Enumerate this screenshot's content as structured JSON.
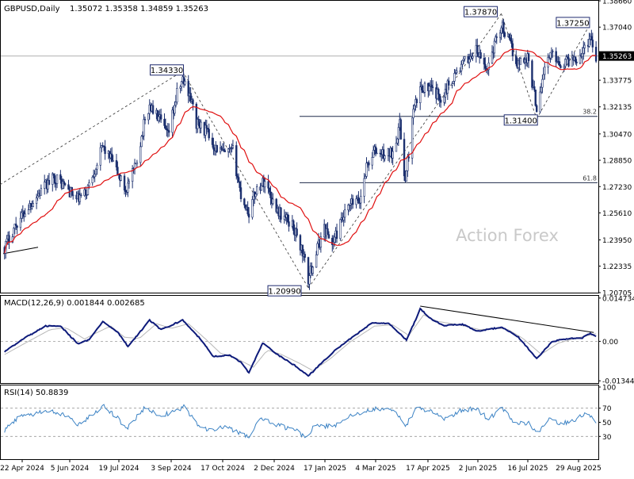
{
  "header": {
    "title": "GBPUSD,Daily",
    "ohlc": "1.35072 1.35358 1.34859 1.35263"
  },
  "watermark": "Action Forex",
  "colors": {
    "candle": "#1b2f6e",
    "ma": "#e01010",
    "macd": "#0d1a7a",
    "signal": "#b8b8b8",
    "rsi": "#3b82c4",
    "grid": "#c8c8c8",
    "trendline": "#000000",
    "watermark": "#c9c9c9"
  },
  "chart_data": [
    {
      "type": "candlestick",
      "title": "GBPUSD,Daily",
      "y_ticks": [
        "1.38660",
        "1.37040",
        "1.35263",
        "1.33775",
        "1.32135",
        "1.30470",
        "1.28850",
        "1.27230",
        "1.25610",
        "1.23950",
        "1.22335",
        "1.20705"
      ],
      "ylim": [
        1.20705,
        1.3866
      ],
      "current_price": "1.35263",
      "x_ticks": [
        "22 Apr 2024",
        "5 Jun 2024",
        "19 Jul 2024",
        "3 Sep 2024",
        "17 Oct 2024",
        "2 Dec 2024",
        "17 Jan 2025",
        "4 Mar 2025",
        "17 Apr 2025",
        "2 Jun 2025",
        "16 Jul 2025",
        "29 Aug 2025"
      ],
      "swing_labels": [
        {
          "label": "1.34330",
          "date": "2024-09-25",
          "value": 1.3433
        },
        {
          "label": "1.20990",
          "date": "2025-01-13",
          "value": 1.2099
        },
        {
          "label": "1.37870",
          "date": "2025-07-01",
          "value": 1.3787
        },
        {
          "label": "1.31400",
          "date": "2025-08-01",
          "value": 1.314
        },
        {
          "label": "1.37250",
          "date": "2025-09-17",
          "value": 1.3725
        }
      ],
      "fibonacci": [
        {
          "label": "38.2",
          "value": 1.3155
        },
        {
          "label": "61.8",
          "value": 1.2747
        }
      ],
      "moving_average": "red",
      "close_path": [
        [
          "2024-04-22",
          1.235
        ],
        [
          "2024-05-01",
          1.248
        ],
        [
          "2024-05-15",
          1.262
        ],
        [
          "2024-05-28",
          1.273
        ],
        [
          "2024-06-05",
          1.278
        ],
        [
          "2024-06-15",
          1.272
        ],
        [
          "2024-06-24",
          1.264
        ],
        [
          "2024-07-02",
          1.268
        ],
        [
          "2024-07-12",
          1.287
        ],
        [
          "2024-07-17",
          1.297
        ],
        [
          "2024-07-25",
          1.288
        ],
        [
          "2024-08-06",
          1.27
        ],
        [
          "2024-08-14",
          1.283
        ],
        [
          "2024-08-22",
          1.31
        ],
        [
          "2024-08-27",
          1.322
        ],
        [
          "2024-09-05",
          1.313
        ],
        [
          "2024-09-12",
          1.303
        ],
        [
          "2024-09-20",
          1.329
        ],
        [
          "2024-09-25",
          1.338
        ],
        [
          "2024-10-01",
          1.33
        ],
        [
          "2024-10-07",
          1.311
        ],
        [
          "2024-10-15",
          1.307
        ],
        [
          "2024-10-23",
          1.297
        ],
        [
          "2024-11-01",
          1.292
        ],
        [
          "2024-11-08",
          1.294
        ],
        [
          "2024-11-15",
          1.267
        ],
        [
          "2024-11-22",
          1.256
        ],
        [
          "2024-11-28",
          1.27
        ],
        [
          "2024-12-06",
          1.276
        ],
        [
          "2024-12-13",
          1.263
        ],
        [
          "2024-12-20",
          1.255
        ],
        [
          "2024-12-30",
          1.249
        ],
        [
          "2025-01-08",
          1.232
        ],
        [
          "2025-01-13",
          1.215
        ],
        [
          "2025-01-20",
          1.232
        ],
        [
          "2025-01-27",
          1.247
        ],
        [
          "2025-02-03",
          1.237
        ],
        [
          "2025-02-12",
          1.252
        ],
        [
          "2025-02-20",
          1.262
        ],
        [
          "2025-02-27",
          1.263
        ],
        [
          "2025-03-05",
          1.285
        ],
        [
          "2025-03-12",
          1.294
        ],
        [
          "2025-03-20",
          1.292
        ],
        [
          "2025-03-27",
          1.293
        ],
        [
          "2025-04-03",
          1.31
        ],
        [
          "2025-04-08",
          1.275
        ],
        [
          "2025-04-15",
          1.318
        ],
        [
          "2025-04-22",
          1.334
        ],
        [
          "2025-04-30",
          1.332
        ],
        [
          "2025-05-09",
          1.327
        ],
        [
          "2025-05-20",
          1.34
        ],
        [
          "2025-05-30",
          1.349
        ],
        [
          "2025-06-09",
          1.356
        ],
        [
          "2025-06-18",
          1.344
        ],
        [
          "2025-06-27",
          1.364
        ],
        [
          "2025-07-01",
          1.372
        ],
        [
          "2025-07-08",
          1.361
        ],
        [
          "2025-07-15",
          1.348
        ],
        [
          "2025-07-24",
          1.352
        ],
        [
          "2025-08-01",
          1.321
        ],
        [
          "2025-08-08",
          1.346
        ],
        [
          "2025-08-15",
          1.355
        ],
        [
          "2025-08-22",
          1.348
        ],
        [
          "2025-08-29",
          1.35
        ],
        [
          "2025-09-05",
          1.352
        ],
        [
          "2025-09-12",
          1.357
        ],
        [
          "2025-09-17",
          1.365
        ],
        [
          "2025-09-22",
          1.3526
        ]
      ]
    },
    {
      "type": "line",
      "title": "MACD(12,26,9) 0.001844 0.002685",
      "y_ticks": [
        "0.014734",
        "0.00",
        "-0.013442"
      ],
      "ylim": [
        -0.0142,
        0.0155
      ],
      "series": [
        {
          "name": "MACD",
          "points": [
            [
              "2024-04-22",
              -0.0035
            ],
            [
              "2024-05-10",
              0.0012
            ],
            [
              "2024-05-28",
              0.0052
            ],
            [
              "2024-06-10",
              0.0052
            ],
            [
              "2024-06-25",
              -0.0008
            ],
            [
              "2024-07-05",
              0.0004
            ],
            [
              "2024-07-17",
              0.0068
            ],
            [
              "2024-07-30",
              0.0032
            ],
            [
              "2024-08-08",
              -0.0018
            ],
            [
              "2024-08-27",
              0.0072
            ],
            [
              "2024-09-06",
              0.004
            ],
            [
              "2024-09-25",
              0.0072
            ],
            [
              "2024-10-10",
              0.001
            ],
            [
              "2024-10-22",
              -0.0052
            ],
            [
              "2024-11-05",
              -0.0046
            ],
            [
              "2024-11-15",
              -0.0072
            ],
            [
              "2024-11-22",
              -0.0108
            ],
            [
              "2024-12-04",
              -0.0006
            ],
            [
              "2024-12-18",
              -0.0048
            ],
            [
              "2025-01-02",
              -0.0084
            ],
            [
              "2025-01-13",
              -0.0118
            ],
            [
              "2025-01-20",
              -0.0092
            ],
            [
              "2025-02-05",
              -0.0032
            ],
            [
              "2025-02-20",
              0.0012
            ],
            [
              "2025-03-10",
              0.0063
            ],
            [
              "2025-03-25",
              0.006
            ],
            [
              "2025-04-09",
              0.0004
            ],
            [
              "2025-04-21",
              0.011
            ],
            [
              "2025-05-02",
              0.0072
            ],
            [
              "2025-05-12",
              0.0054
            ],
            [
              "2025-05-28",
              0.0058
            ],
            [
              "2025-06-10",
              0.0034
            ],
            [
              "2025-06-25",
              0.0044
            ],
            [
              "2025-07-01",
              0.0048
            ],
            [
              "2025-07-15",
              0.0018
            ],
            [
              "2025-08-01",
              -0.0058
            ],
            [
              "2025-08-15",
              0.0
            ],
            [
              "2025-08-29",
              0.001
            ],
            [
              "2025-09-10",
              0.0012
            ],
            [
              "2025-09-17",
              0.0026
            ],
            [
              "2025-09-22",
              0.0018
            ]
          ]
        },
        {
          "name": "Signal",
          "points": [
            [
              "2024-04-22",
              -0.0045
            ],
            [
              "2024-05-12",
              -0.0002
            ],
            [
              "2024-06-01",
              0.004
            ],
            [
              "2024-06-15",
              0.0046
            ],
            [
              "2024-07-01",
              0.0008
            ],
            [
              "2024-07-12",
              0.003
            ],
            [
              "2024-07-24",
              0.0052
            ],
            [
              "2024-08-05",
              0.0014
            ],
            [
              "2024-08-18",
              0.001
            ],
            [
              "2024-09-02",
              0.006
            ],
            [
              "2024-09-15",
              0.0044
            ],
            [
              "2024-09-30",
              0.006
            ],
            [
              "2024-10-15",
              0.0008
            ],
            [
              "2024-10-28",
              -0.004
            ],
            [
              "2024-11-12",
              -0.006
            ],
            [
              "2024-11-26",
              -0.0088
            ],
            [
              "2024-12-08",
              -0.003
            ],
            [
              "2024-12-20",
              -0.0044
            ],
            [
              "2025-01-06",
              -0.0076
            ],
            [
              "2025-01-17",
              -0.01
            ],
            [
              "2025-02-01",
              -0.006
            ],
            [
              "2025-02-18",
              -0.0004
            ],
            [
              "2025-03-12",
              0.0052
            ],
            [
              "2025-03-28",
              0.0056
            ],
            [
              "2025-04-11",
              0.002
            ],
            [
              "2025-04-24",
              0.009
            ],
            [
              "2025-05-06",
              0.0068
            ],
            [
              "2025-05-25",
              0.0056
            ],
            [
              "2025-06-12",
              0.004
            ],
            [
              "2025-06-28",
              0.0044
            ],
            [
              "2025-07-06",
              0.0042
            ],
            [
              "2025-07-20",
              0.001
            ],
            [
              "2025-08-05",
              -0.0044
            ],
            [
              "2025-08-20",
              -0.0006
            ],
            [
              "2025-09-02",
              0.0008
            ],
            [
              "2025-09-17",
              0.0022
            ],
            [
              "2025-09-22",
              0.0026
            ]
          ]
        }
      ]
    },
    {
      "type": "line",
      "title": "RSI(14) 50.8839",
      "y_ticks": [
        "100",
        "70",
        "50",
        "30"
      ],
      "ylim": [
        0,
        100
      ],
      "levels": [
        70,
        30
      ],
      "series": [
        {
          "name": "RSI",
          "points": [
            [
              "2024-04-22",
              38
            ],
            [
              "2024-05-03",
              56
            ],
            [
              "2024-05-17",
              62
            ],
            [
              "2024-05-30",
              66
            ],
            [
              "2024-06-12",
              62
            ],
            [
              "2024-06-25",
              46
            ],
            [
              "2024-07-08",
              60
            ],
            [
              "2024-07-18",
              72
            ],
            [
              "2024-07-29",
              58
            ],
            [
              "2024-08-07",
              40
            ],
            [
              "2024-08-22",
              70
            ],
            [
              "2024-09-05",
              60
            ],
            [
              "2024-09-16",
              64
            ],
            [
              "2024-09-26",
              72
            ],
            [
              "2024-10-08",
              46
            ],
            [
              "2024-10-21",
              38
            ],
            [
              "2024-11-01",
              44
            ],
            [
              "2024-11-14",
              34
            ],
            [
              "2024-11-22",
              30
            ],
            [
              "2024-12-03",
              56
            ],
            [
              "2024-12-16",
              46
            ],
            [
              "2024-12-31",
              40
            ],
            [
              "2025-01-10",
              30
            ],
            [
              "2025-01-20",
              46
            ],
            [
              "2025-02-04",
              44
            ],
            [
              "2025-02-18",
              58
            ],
            [
              "2025-03-05",
              66
            ],
            [
              "2025-03-18",
              70
            ],
            [
              "2025-04-01",
              62
            ],
            [
              "2025-04-08",
              44
            ],
            [
              "2025-04-18",
              70
            ],
            [
              "2025-04-30",
              66
            ],
            [
              "2025-05-13",
              54
            ],
            [
              "2025-05-26",
              66
            ],
            [
              "2025-06-09",
              70
            ],
            [
              "2025-06-20",
              54
            ],
            [
              "2025-07-01",
              72
            ],
            [
              "2025-07-14",
              48
            ],
            [
              "2025-07-25",
              50
            ],
            [
              "2025-08-01",
              34
            ],
            [
              "2025-08-12",
              56
            ],
            [
              "2025-08-22",
              48
            ],
            [
              "2025-09-03",
              54
            ],
            [
              "2025-09-15",
              64
            ],
            [
              "2025-09-22",
              51
            ]
          ]
        }
      ]
    }
  ]
}
